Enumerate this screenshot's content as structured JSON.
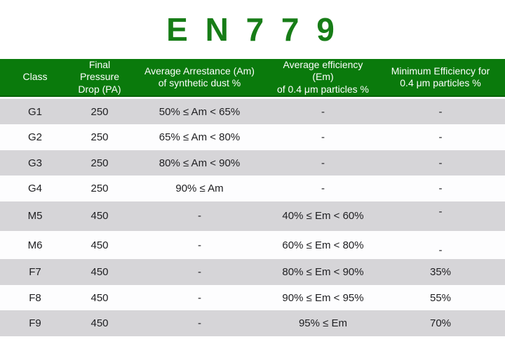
{
  "page": {
    "title": "E N 7 7 9"
  },
  "colors": {
    "title_green": "#177d17",
    "header_green": "#0a7a0c",
    "header_border_green": "#076307",
    "row_gray": "#d6d5d8",
    "row_white": "#fdfdfe",
    "header_text": "#ffffff",
    "body_text": "#202023"
  },
  "chart_data": {
    "type": "table",
    "title": "E N 7 7 9",
    "legend_position": "none",
    "grid": false,
    "columns": [
      "Class",
      "Final Pressure\nDrop (PA)",
      "Average Arrestance (Am)\nof synthetic dust %",
      "Average efficiency (Em)\nof 0.4 μm particles %",
      "Minimum Efficiency for\n0.4 μm particles %"
    ],
    "rows": [
      [
        "G1",
        "250",
        "50% ≤ Am < 65%",
        "-",
        "-"
      ],
      [
        "G2",
        "250",
        "65% ≤ Am < 80%",
        "-",
        "-"
      ],
      [
        "G3",
        "250",
        "80% ≤ Am < 90%",
        "-",
        "-"
      ],
      [
        "G4",
        "250",
        "90% ≤ Am",
        "-",
        "-"
      ],
      [
        "M5",
        "450",
        "-",
        "40% ≤ Em < 60%",
        "-"
      ],
      [
        "M6",
        "450",
        "-",
        "60% ≤ Em < 80%",
        "-"
      ],
      [
        "F7",
        "450",
        "-",
        "80% ≤ Em < 90%",
        "35%"
      ],
      [
        "F8",
        "450",
        "-",
        "90% ≤ Em < 95%",
        "55%"
      ],
      [
        "F9",
        "450",
        "-",
        "95% ≤ Em",
        "70%"
      ]
    ]
  }
}
